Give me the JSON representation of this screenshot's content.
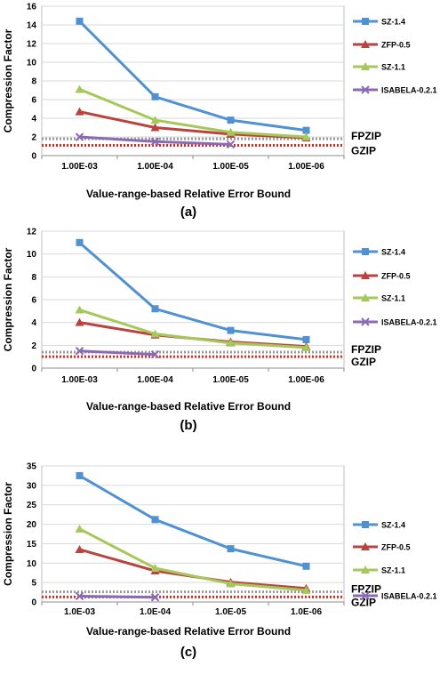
{
  "colors": {
    "sz14": "#4f91d1",
    "zfp": "#b8433f",
    "sz11": "#a6c85a",
    "isabela": "#8a6bb3",
    "fpzip": "#999999",
    "gzip": "#e8251b",
    "grid": "#d9d9d9"
  },
  "chart_data": [
    {
      "type": "line",
      "panel_label": "(a)",
      "xlabel": "Value-range-based Relative Error Bound",
      "ylabel": "Compression Factor",
      "categories": [
        "1.00E-03",
        "1.00E-04",
        "1.00E-05",
        "1.00E-06"
      ],
      "ylim": [
        0,
        16
      ],
      "yticks": [
        "0",
        "2",
        "4",
        "6",
        "8",
        "10",
        "12",
        "14",
        "16"
      ],
      "grid": true,
      "legend_position": "right",
      "series": [
        {
          "name": "SZ-1.4",
          "color": "sz14",
          "values": [
            14.4,
            6.3,
            3.8,
            2.7
          ]
        },
        {
          "name": "ZFP-0.5",
          "color": "zfp",
          "values": [
            4.7,
            3.0,
            2.3,
            1.9
          ]
        },
        {
          "name": "SZ-1.1",
          "color": "sz11",
          "values": [
            7.1,
            3.8,
            2.5,
            2.0
          ]
        },
        {
          "name": "ISABELA-0.2.1",
          "color": "isabela",
          "values": [
            2.0,
            1.5,
            1.2,
            null
          ]
        }
      ],
      "reference_lines": [
        {
          "name": "FPZIP",
          "value": 1.8,
          "color": "fpzip"
        },
        {
          "name": "GZIP",
          "value": 1.1,
          "color": "gzip"
        }
      ]
    },
    {
      "type": "line",
      "panel_label": "(b)",
      "xlabel": "Value-range-based Relative Error Bound",
      "ylabel": "Compression Factor",
      "categories": [
        "1.00E-03",
        "1.00E-04",
        "1.00E-05",
        "1.00E-06"
      ],
      "ylim": [
        0,
        12
      ],
      "yticks": [
        "0",
        "2",
        "4",
        "6",
        "8",
        "10",
        "12"
      ],
      "grid": true,
      "legend_position": "right",
      "series": [
        {
          "name": "SZ-1.4",
          "color": "sz14",
          "values": [
            11.0,
            5.2,
            3.3,
            2.5
          ]
        },
        {
          "name": "ZFP-0.5",
          "color": "zfp",
          "values": [
            4.0,
            2.9,
            2.3,
            1.9
          ]
        },
        {
          "name": "SZ-1.1",
          "color": "sz11",
          "values": [
            5.1,
            3.0,
            2.2,
            1.8
          ]
        },
        {
          "name": "ISABELA-0.2.1",
          "color": "isabela",
          "values": [
            1.5,
            1.2,
            null,
            null
          ]
        }
      ],
      "reference_lines": [
        {
          "name": "FPZIP",
          "value": 1.4,
          "color": "fpzip"
        },
        {
          "name": "GZIP",
          "value": 1.0,
          "color": "gzip"
        }
      ]
    },
    {
      "type": "line",
      "panel_label": "(c)",
      "xlabel": "Value-range-based Relative Error Bound",
      "ylabel": "Compression Factor",
      "categories": [
        "1.0E-03",
        "1.0E-04",
        "1.0E-05",
        "1.0E-06"
      ],
      "ylim": [
        0,
        35
      ],
      "yticks": [
        "0",
        "5",
        "10",
        "15",
        "20",
        "25",
        "30",
        "35"
      ],
      "grid": true,
      "legend_position": "right",
      "series": [
        {
          "name": "SZ-1.4",
          "color": "sz14",
          "values": [
            32.5,
            21.2,
            13.7,
            9.2
          ]
        },
        {
          "name": "ZFP-0.5",
          "color": "zfp",
          "values": [
            13.5,
            8.0,
            5.1,
            3.5
          ]
        },
        {
          "name": "SZ-1.1",
          "color": "sz11",
          "values": [
            18.8,
            8.7,
            4.7,
            3.0
          ]
        },
        {
          "name": "ISABELA-0.2.1",
          "color": "isabela",
          "values": [
            1.5,
            1.2,
            null,
            null
          ]
        }
      ],
      "reference_lines": [
        {
          "name": "FPZIP",
          "value": 2.6,
          "color": "fpzip"
        },
        {
          "name": "GZIP",
          "value": 1.3,
          "color": "gzip"
        }
      ]
    }
  ]
}
